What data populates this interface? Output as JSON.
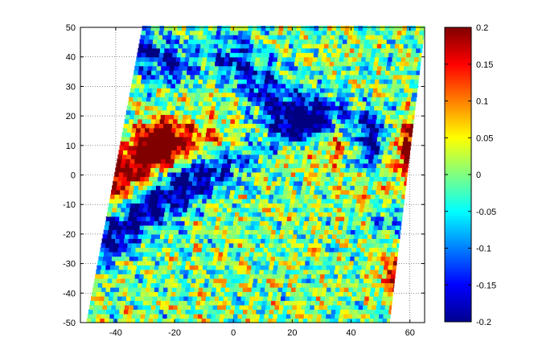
{
  "chart_data": {
    "type": "heatmap",
    "title": "",
    "xlabel": "",
    "ylabel": "",
    "xlim": [
      -52,
      65
    ],
    "ylim": [
      -50,
      50
    ],
    "x_ticks": [
      -40,
      -20,
      0,
      20,
      40,
      60
    ],
    "y_ticks": [
      -50,
      -40,
      -30,
      -20,
      -10,
      0,
      10,
      20,
      30,
      40,
      50
    ],
    "x_tick_labels": [
      "-40",
      "-20",
      "0",
      "20",
      "40",
      "60"
    ],
    "y_tick_labels": [
      "-50",
      "-40",
      "-30",
      "-20",
      "-10",
      "0",
      "10",
      "20",
      "30",
      "40",
      "50"
    ],
    "grid": "dotted",
    "colormap": "jet",
    "clim": [
      -0.2,
      0.2
    ],
    "colorbar": {
      "placement": "right",
      "ticks": [
        0.2,
        0.15,
        0.1,
        0.05,
        0,
        -0.05,
        -0.1,
        -0.15,
        -0.2
      ],
      "tick_labels": [
        "0.2",
        "0.15",
        "0.1",
        "0.05",
        "0",
        "-0.05",
        "-0.1",
        "-0.15",
        "-0.2"
      ]
    },
    "data_region": {
      "description": "skewed swath of a 2-D field, white outside coverage",
      "x_left_at_top": -31,
      "x_left_at_bottom": -50,
      "x_right_at_top": 65,
      "x_right_at_bottom": 53,
      "top_y": 50,
      "bottom_y": -50
    },
    "features": [
      {
        "kind": "positive band",
        "from": [
          -48,
          -8
        ],
        "to": [
          -25,
          10
        ],
        "level": 0.2
      },
      {
        "kind": "positive band",
        "from": [
          -25,
          10
        ],
        "to": [
          35,
          12
        ],
        "level": 0.15
      },
      {
        "kind": "positive band",
        "from": [
          50,
          -5
        ],
        "to": [
          62,
          12
        ],
        "level": 0.2
      },
      {
        "kind": "positive streak",
        "from": [
          58,
          -32
        ],
        "to": [
          63,
          -10
        ],
        "level": 0.2
      },
      {
        "kind": "negative band",
        "from": [
          -48,
          -25
        ],
        "to": [
          -20,
          -5
        ],
        "level": -0.2
      },
      {
        "kind": "negative band",
        "from": [
          -10,
          2
        ],
        "to": [
          30,
          20
        ],
        "level": -0.2
      },
      {
        "kind": "negative band",
        "from": [
          0,
          40
        ],
        "to": [
          25,
          15
        ],
        "level": -0.15
      },
      {
        "kind": "negative band",
        "from": [
          45,
          15
        ],
        "to": [
          58,
          -20
        ],
        "level": -0.2
      },
      {
        "kind": "negative patch",
        "from": [
          -40,
          45
        ],
        "to": [
          -20,
          38
        ],
        "level": -0.15
      }
    ]
  }
}
